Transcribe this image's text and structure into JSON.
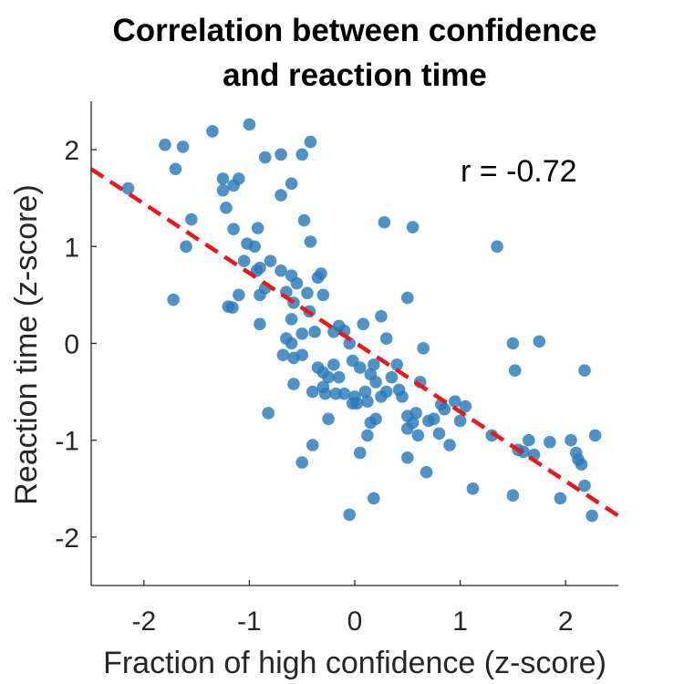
{
  "chart_data": {
    "type": "scatter",
    "title_lines": [
      "Correlation between confidence",
      "and reaction time"
    ],
    "xlabel": "Fraction of high confidence (z-score)",
    "ylabel": "Reaction time (z-score)",
    "xlim": [
      -2.5,
      2.5
    ],
    "ylim": [
      -2.5,
      2.5
    ],
    "xticks": [
      -2,
      -1,
      0,
      1,
      2
    ],
    "yticks": [
      -2,
      -1,
      0,
      1,
      2
    ],
    "tick_labels_x": [
      "-2",
      "-1",
      "0",
      "1",
      "2"
    ],
    "tick_labels_y": [
      "-2",
      "-1",
      "0",
      "1",
      "2"
    ],
    "annotation": "r = -0.72",
    "grid": false,
    "point_color": "#2a7ab9",
    "fit_color": "#e41a1c",
    "fit_line": {
      "x": [
        -2.5,
        2.5
      ],
      "y": [
        1.8,
        -1.78
      ]
    },
    "points": [
      [
        -2.15,
        1.6
      ],
      [
        -1.8,
        2.05
      ],
      [
        -1.7,
        1.8
      ],
      [
        -1.63,
        2.03
      ],
      [
        -1.6,
        1.0
      ],
      [
        -1.55,
        1.28
      ],
      [
        -1.72,
        0.45
      ],
      [
        -1.35,
        2.19
      ],
      [
        -1.25,
        1.7
      ],
      [
        -1.25,
        1.58
      ],
      [
        -1.22,
        1.4
      ],
      [
        -1.15,
        1.63
      ],
      [
        -1.1,
        1.7
      ],
      [
        -1.15,
        1.18
      ],
      [
        -1.2,
        0.38
      ],
      [
        -1.16,
        0.37
      ],
      [
        -1.1,
        0.5
      ],
      [
        -1.05,
        0.85
      ],
      [
        -1.02,
        1.03
      ],
      [
        -1.0,
        2.26
      ],
      [
        -0.95,
        1.0
      ],
      [
        -0.92,
        1.19
      ],
      [
        -0.9,
        0.78
      ],
      [
        -0.93,
        0.75
      ],
      [
        -0.9,
        0.5
      ],
      [
        -0.85,
        0.57
      ],
      [
        -0.9,
        0.2
      ],
      [
        -0.85,
        1.92
      ],
      [
        -0.8,
        0.85
      ],
      [
        -0.7,
        0.75
      ],
      [
        -0.65,
        0.53
      ],
      [
        -0.7,
        1.95
      ],
      [
        -0.7,
        1.53
      ],
      [
        -0.6,
        1.65
      ],
      [
        -0.5,
        1.95
      ],
      [
        -0.42,
        2.08
      ],
      [
        -0.6,
        0.7
      ],
      [
        -0.55,
        0.62
      ],
      [
        -0.58,
        0.42
      ],
      [
        -0.6,
        0.25
      ],
      [
        -0.65,
        0.05
      ],
      [
        -0.68,
        -0.12
      ],
      [
        -0.6,
        0.0
      ],
      [
        -0.58,
        -0.15
      ],
      [
        -0.5,
        0.1
      ],
      [
        -0.5,
        -0.12
      ],
      [
        -0.48,
        1.27
      ],
      [
        -0.42,
        1.05
      ],
      [
        -0.45,
        0.52
      ],
      [
        -0.43,
        0.33
      ],
      [
        -0.38,
        0.12
      ],
      [
        -0.35,
        0.68
      ],
      [
        -0.32,
        0.72
      ],
      [
        -0.3,
        0.5
      ],
      [
        -0.35,
        -0.25
      ],
      [
        -0.3,
        -0.3
      ],
      [
        -0.3,
        -0.45
      ],
      [
        -0.28,
        -0.52
      ],
      [
        -0.4,
        -0.5
      ],
      [
        -0.4,
        -1.05
      ],
      [
        -0.5,
        -1.23
      ],
      [
        -0.58,
        -0.42
      ],
      [
        -0.82,
        -0.72
      ],
      [
        -0.25,
        -0.78
      ],
      [
        -0.2,
        -0.22
      ],
      [
        -0.18,
        -0.52
      ],
      [
        -0.1,
        -0.52
      ],
      [
        -0.15,
        0.18
      ],
      [
        -0.1,
        0.13
      ],
      [
        -0.05,
        0.0
      ],
      [
        -0.02,
        -0.18
      ],
      [
        0.0,
        -0.55
      ],
      [
        0.02,
        -0.62
      ],
      [
        0.05,
        -0.25
      ],
      [
        0.08,
        0.2
      ],
      [
        0.1,
        -0.5
      ],
      [
        0.12,
        -0.6
      ],
      [
        0.15,
        -0.32
      ],
      [
        0.18,
        -0.22
      ],
      [
        0.2,
        -0.4
      ],
      [
        0.2,
        -0.78
      ],
      [
        0.15,
        -0.82
      ],
      [
        0.25,
        -0.55
      ],
      [
        0.3,
        -0.5
      ],
      [
        0.25,
        0.28
      ],
      [
        0.3,
        0.05
      ],
      [
        0.28,
        1.25
      ],
      [
        0.35,
        -0.35
      ],
      [
        0.4,
        -0.22
      ],
      [
        0.42,
        -0.48
      ],
      [
        0.5,
        -0.75
      ],
      [
        0.5,
        -0.88
      ],
      [
        0.5,
        -1.18
      ],
      [
        0.55,
        -0.82
      ],
      [
        0.58,
        -0.72
      ],
      [
        0.6,
        -0.95
      ],
      [
        0.62,
        -0.4
      ],
      [
        0.65,
        -0.05
      ],
      [
        0.68,
        -1.33
      ],
      [
        0.7,
        -0.8
      ],
      [
        0.75,
        -0.78
      ],
      [
        0.8,
        -0.93
      ],
      [
        0.82,
        -0.63
      ],
      [
        0.85,
        -0.68
      ],
      [
        0.9,
        -1.05
      ],
      [
        0.95,
        -0.6
      ],
      [
        1.0,
        -0.8
      ],
      [
        1.05,
        -0.65
      ],
      [
        1.12,
        -1.5
      ],
      [
        0.55,
        1.2
      ],
      [
        0.5,
        0.47
      ],
      [
        1.3,
        -0.95
      ],
      [
        1.35,
        1.0
      ],
      [
        1.5,
        0.0
      ],
      [
        1.52,
        -0.28
      ],
      [
        1.5,
        -1.57
      ],
      [
        1.55,
        -1.1
      ],
      [
        1.6,
        -1.12
      ],
      [
        1.65,
        -1.0
      ],
      [
        1.7,
        -1.15
      ],
      [
        1.75,
        0.02
      ],
      [
        1.85,
        -1.02
      ],
      [
        1.95,
        -1.6
      ],
      [
        2.05,
        -1.0
      ],
      [
        2.1,
        -1.13
      ],
      [
        2.12,
        -1.2
      ],
      [
        2.15,
        -1.25
      ],
      [
        2.18,
        -1.47
      ],
      [
        2.18,
        -0.28
      ],
      [
        2.25,
        -1.78
      ],
      [
        2.28,
        -0.95
      ],
      [
        -0.05,
        -1.77
      ],
      [
        0.18,
        -1.6
      ],
      [
        -0.02,
        -0.62
      ],
      [
        0.12,
        -0.95
      ],
      [
        -0.15,
        -0.35
      ],
      [
        0.45,
        -0.55
      ],
      [
        0.05,
        -1.13
      ],
      [
        -0.25,
        -0.35
      ],
      [
        -0.2,
        0.12
      ]
    ]
  }
}
